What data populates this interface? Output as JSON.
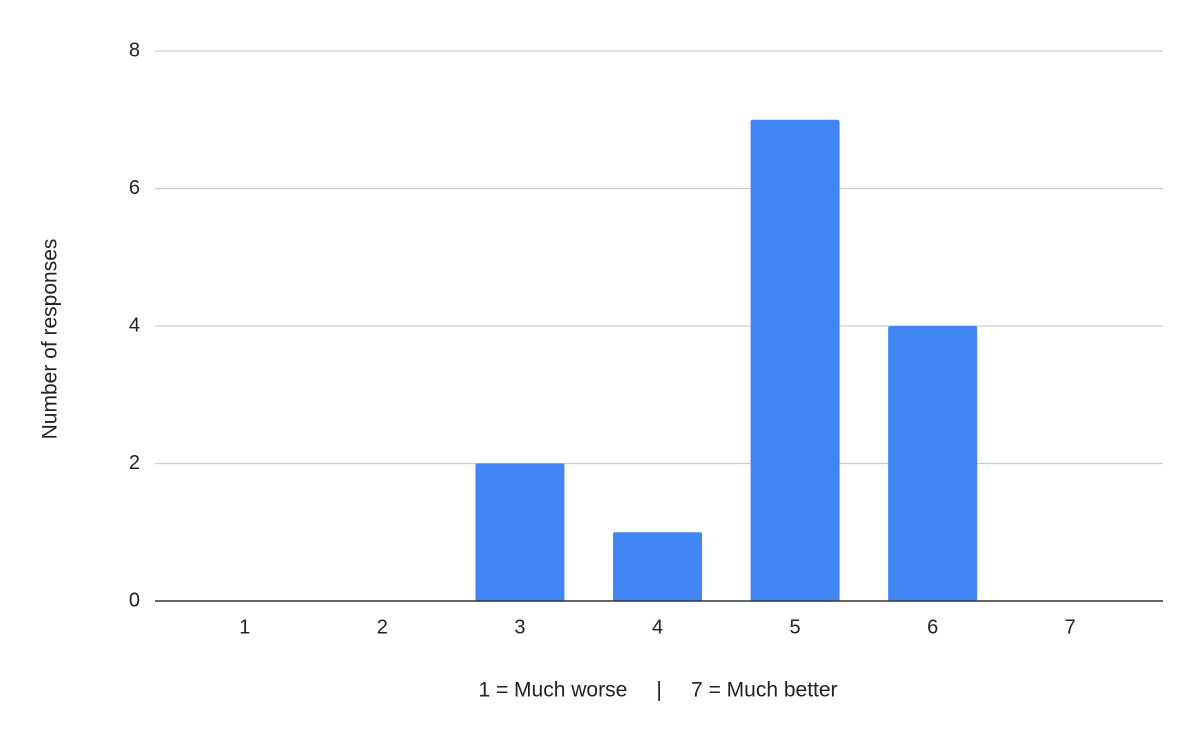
{
  "chart_data": {
    "type": "bar",
    "x_label": "1 = Much worse     |     7 = Much better",
    "y_label": "Number of responses",
    "categories": [
      "1",
      "2",
      "3",
      "4",
      "5",
      "6",
      "7"
    ],
    "values": [
      0,
      0,
      2,
      1,
      7,
      4,
      0
    ],
    "color": "#4285f4",
    "ylim": [
      0,
      8
    ],
    "yticks": [
      0,
      2,
      4,
      6,
      8
    ],
    "grid": true
  }
}
